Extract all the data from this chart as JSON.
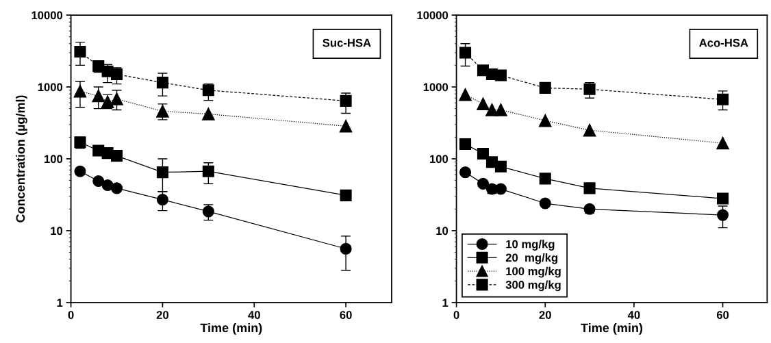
{
  "chart_data": [
    {
      "type": "line",
      "xlabel": "Time (min)",
      "ylabel": "Concentration (µg/ml)",
      "annotations": [
        "Suc-HSA"
      ],
      "log": "y",
      "xlim": [
        0,
        70
      ],
      "xticks": [
        0,
        20,
        40,
        60
      ],
      "ylim": [
        1,
        10000
      ],
      "yticks": [
        1,
        10,
        100,
        1000,
        10000
      ],
      "grid": false,
      "series": [
        {
          "color": "#000000",
          "marker": "circle",
          "line_style": "solid",
          "x": [
            2,
            6,
            8,
            10,
            20,
            30,
            60
          ],
          "values": [
            67,
            49,
            43,
            39,
            27,
            18.5,
            5.6
          ],
          "errors": [
            null,
            null,
            null,
            null,
            [
              19,
              35
            ],
            [
              14,
              23
            ],
            [
              2.8,
              8.4
            ]
          ]
        },
        {
          "color": "#000000",
          "marker": "square",
          "line_style": "solid",
          "x": [
            2,
            6,
            8,
            10,
            20,
            30,
            60
          ],
          "values": [
            170,
            130,
            120,
            110,
            65,
            67,
            31
          ],
          "errors": [
            [
              140,
              200
            ],
            null,
            null,
            null,
            [
              35,
              100
            ],
            [
              45,
              88
            ],
            [
              26,
              31
            ]
          ]
        },
        {
          "color": "#000000",
          "marker": "triangle",
          "line_style": "dotted",
          "x": [
            2,
            6,
            8,
            10,
            20,
            30,
            60
          ],
          "values": [
            870,
            750,
            620,
            680,
            460,
            420,
            285
          ],
          "errors": [
            [
              520,
              1200
            ],
            [
              500,
              1000
            ],
            [
              500,
              780
            ],
            [
              480,
              900
            ],
            [
              350,
              580
            ],
            null,
            null
          ]
        },
        {
          "color": "#000000",
          "marker": "square",
          "line_style": "dashed",
          "x": [
            2,
            6,
            8,
            10,
            20,
            30,
            60
          ],
          "values": [
            3100,
            1950,
            1650,
            1500,
            1150,
            900,
            640
          ],
          "errors": [
            [
              2000,
              4200
            ],
            [
              1600,
              2300
            ],
            [
              1150,
              2050
            ],
            [
              1100,
              1850
            ],
            [
              750,
              1550
            ],
            [
              650,
              1100
            ],
            [
              430,
              820
            ]
          ]
        }
      ]
    },
    {
      "type": "line",
      "xlabel": "Time (min)",
      "annotations": [
        "Aco-HSA"
      ],
      "log": "y",
      "xlim": [
        0,
        70
      ],
      "xticks": [
        0,
        20,
        40,
        60
      ],
      "ylim": [
        1,
        10000
      ],
      "yticks": [
        1,
        10,
        100,
        1000,
        10000
      ],
      "grid": false,
      "legend": "bottom left",
      "series": [
        {
          "name": "10 mg/kg",
          "color": "#000000",
          "marker": "circle",
          "line_style": "solid",
          "x": [
            2,
            6,
            8,
            10,
            20,
            30,
            60
          ],
          "values": [
            65,
            45,
            38,
            38,
            24,
            20,
            16.5
          ],
          "errors": [
            null,
            null,
            [
              33,
              43
            ],
            null,
            null,
            [
              17.5,
              22
            ],
            [
              11,
              22
            ]
          ]
        },
        {
          "name": "20  mg/kg",
          "color": "#000000",
          "marker": "square",
          "line_style": "solid",
          "x": [
            2,
            6,
            8,
            10,
            20,
            30,
            60
          ],
          "values": [
            160,
            118,
            90,
            78,
            53,
            39,
            28
          ],
          "errors": [
            null,
            null,
            null,
            null,
            null,
            null,
            null
          ]
        },
        {
          "name": "100 mg/kg",
          "color": "#000000",
          "marker": "triangle",
          "line_style": "dotted",
          "x": [
            2,
            6,
            8,
            10,
            20,
            30,
            60
          ],
          "values": [
            780,
            580,
            480,
            480,
            340,
            250,
            165
          ],
          "errors": [
            null,
            null,
            null,
            null,
            null,
            null,
            null
          ]
        },
        {
          "name": "300 mg/kg",
          "color": "#000000",
          "marker": "square",
          "line_style": "dashed",
          "x": [
            2,
            6,
            8,
            10,
            20,
            30,
            60
          ],
          "values": [
            3000,
            1700,
            1500,
            1450,
            970,
            930,
            670
          ],
          "errors": [
            [
              1950,
              4000
            ],
            [
              1450,
              1950
            ],
            null,
            null,
            null,
            [
              700,
              1150
            ],
            [
              480,
              880
            ]
          ]
        }
      ]
    }
  ]
}
